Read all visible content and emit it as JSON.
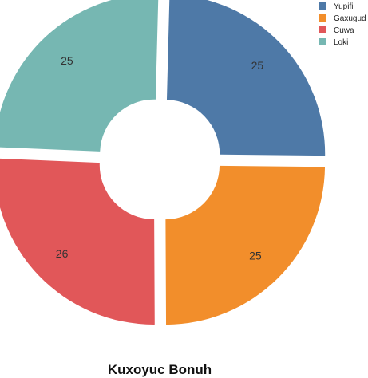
{
  "chart_data": {
    "type": "pie",
    "donut": true,
    "exploded": true,
    "title": "Kuxoyuc Bonuh",
    "legend_position": "top-right",
    "categories": [
      "Yupifi",
      "Gaxugud",
      "Cuwa",
      "Loki"
    ],
    "values": [
      25,
      25,
      26,
      25
    ],
    "colors": [
      "#4e79a7",
      "#f28e2b",
      "#e15759",
      "#76b7b2"
    ]
  }
}
